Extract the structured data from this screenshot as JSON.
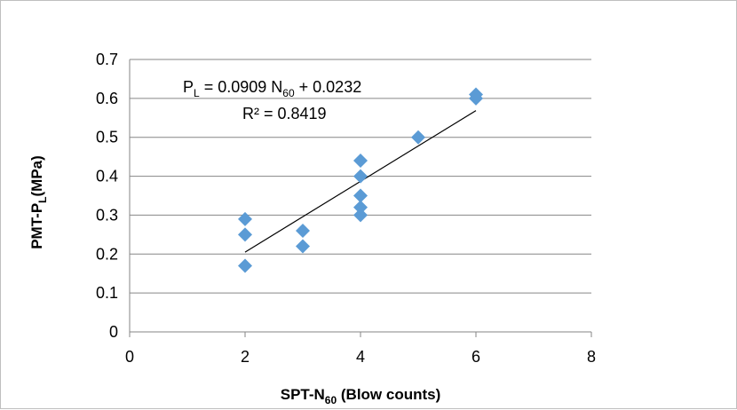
{
  "chart_data": {
    "type": "scatter",
    "series": [
      {
        "values": [
          [
            2,
            0.29
          ],
          [
            2,
            0.25
          ],
          [
            2,
            0.17
          ],
          [
            3,
            0.26
          ],
          [
            3,
            0.22
          ],
          [
            4,
            0.44
          ],
          [
            4,
            0.4
          ],
          [
            4,
            0.35
          ],
          [
            4,
            0.32
          ],
          [
            4,
            0.3
          ],
          [
            5,
            0.5
          ],
          [
            6,
            0.61
          ],
          [
            6,
            0.6
          ]
        ],
        "color": "#5b9bd5",
        "marker": "diamond"
      }
    ],
    "trendline": {
      "slope": 0.0909,
      "intercept": 0.0232,
      "x_range": [
        2,
        6
      ],
      "color": "#000000"
    },
    "xlim": [
      0,
      8
    ],
    "ylim": [
      0,
      0.7
    ],
    "x_ticks": [
      "0",
      "2",
      "4",
      "6",
      "8"
    ],
    "y_ticks": [
      "0",
      "0.1",
      "0.2",
      "0.3",
      "0.4",
      "0.5",
      "0.6",
      "0.7"
    ],
    "xlabel": {
      "main": "SPT-N",
      "sub": "60",
      "suffix": " (Blow counts)"
    },
    "ylabel": {
      "main": "PMT-P",
      "sub": "L",
      "suffix": "(MPa)"
    },
    "equation": {
      "p": "P",
      "p_sub": "L",
      "mid": " = 0.0909 N",
      "n_sub": "60",
      "tail": " + 0.0232"
    },
    "r_squared": "R² = 0.8419",
    "grid": true,
    "legend": "none",
    "gridline_color": "#868686"
  }
}
